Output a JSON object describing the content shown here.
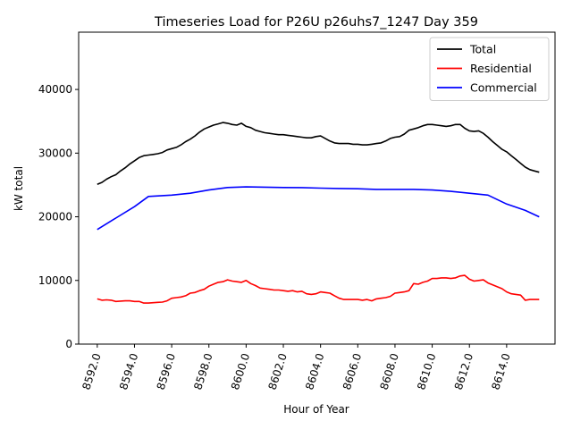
{
  "chart_data": {
    "type": "line",
    "title": "Timeseries Load for P26U p26uhs7_1247  Day 359",
    "xlabel": "Hour of Year",
    "ylabel": "kW total",
    "xlim": [
      8591.0,
      8616.6
    ],
    "ylim": [
      0,
      49000
    ],
    "x_ticks": [
      8592.0,
      8594.0,
      8596.0,
      8598.0,
      8600.0,
      8602.0,
      8604.0,
      8606.0,
      8608.0,
      8610.0,
      8612.0,
      8614.0
    ],
    "x_tick_labels": [
      "8592.0",
      "8594.0",
      "8596.0",
      "8598.0",
      "8600.0",
      "8602.0",
      "8604.0",
      "8606.0",
      "8608.0",
      "8610.0",
      "8612.0",
      "8614.0"
    ],
    "y_ticks": [
      0,
      10000,
      20000,
      30000,
      40000
    ],
    "y_tick_labels": [
      "0",
      "10000",
      "20000",
      "30000",
      "40000"
    ],
    "legend_position": "top-right",
    "series": [
      {
        "name": "Total",
        "color": "#000000",
        "x": [
          8592.0,
          8592.25,
          8592.5,
          8592.75,
          8593.0,
          8593.25,
          8593.5,
          8593.75,
          8594.0,
          8594.25,
          8594.5,
          8594.75,
          8595.0,
          8595.25,
          8595.5,
          8595.75,
          8596.0,
          8596.25,
          8596.5,
          8596.75,
          8597.0,
          8597.25,
          8597.5,
          8597.75,
          8598.0,
          8598.25,
          8598.5,
          8598.75,
          8599.0,
          8599.25,
          8599.5,
          8599.75,
          8600.0,
          8600.25,
          8600.5,
          8600.75,
          8601.0,
          8601.25,
          8601.5,
          8601.75,
          8602.0,
          8602.25,
          8602.5,
          8602.75,
          8603.0,
          8603.25,
          8603.5,
          8603.75,
          8604.0,
          8604.25,
          8604.5,
          8604.75,
          8605.0,
          8605.25,
          8605.5,
          8605.75,
          8606.0,
          8606.25,
          8606.5,
          8606.75,
          8607.0,
          8607.25,
          8607.5,
          8607.75,
          8608.0,
          8608.25,
          8608.5,
          8608.75,
          8609.0,
          8609.25,
          8609.5,
          8609.75,
          8610.0,
          8610.25,
          8610.5,
          8610.75,
          8611.0,
          8611.25,
          8611.5,
          8611.75,
          8612.0,
          8612.25,
          8612.5,
          8612.75,
          8613.0,
          8613.25,
          8613.5,
          8613.75,
          8614.0,
          8614.25,
          8614.5,
          8614.75,
          8615.0,
          8615.25,
          8615.5,
          8615.75
        ],
        "y": [
          25100,
          25400,
          25900,
          26300,
          26600,
          27200,
          27700,
          28300,
          28800,
          29300,
          29600,
          29700,
          29800,
          29900,
          30100,
          30500,
          30700,
          30900,
          31300,
          31800,
          32200,
          32700,
          33300,
          33800,
          34100,
          34400,
          34600,
          34800,
          34700,
          34500,
          34400,
          34700,
          34200,
          34000,
          33600,
          33400,
          33200,
          33100,
          33000,
          32900,
          32900,
          32800,
          32700,
          32600,
          32500,
          32400,
          32400,
          32600,
          32700,
          32300,
          31900,
          31600,
          31500,
          31500,
          31500,
          31400,
          31400,
          31300,
          31300,
          31400,
          31500,
          31600,
          31900,
          32300,
          32500,
          32600,
          33000,
          33600,
          33800,
          34000,
          34300,
          34500,
          34500,
          34400,
          34300,
          34200,
          34300,
          34500,
          34500,
          33900,
          33500,
          33400,
          33500,
          33100,
          32500,
          31800,
          31200,
          30600,
          30200,
          29600,
          29000,
          28400,
          27800,
          27400,
          27200,
          27000
        ]
      },
      {
        "name": "Residential",
        "color": "#ff0000",
        "x": [
          8592.0,
          8592.25,
          8592.5,
          8592.75,
          8593.0,
          8593.25,
          8593.5,
          8593.75,
          8594.0,
          8594.25,
          8594.5,
          8594.75,
          8595.0,
          8595.25,
          8595.5,
          8595.75,
          8596.0,
          8596.25,
          8596.5,
          8596.75,
          8597.0,
          8597.25,
          8597.5,
          8597.75,
          8598.0,
          8598.25,
          8598.5,
          8598.75,
          8599.0,
          8599.25,
          8599.5,
          8599.75,
          8600.0,
          8600.25,
          8600.5,
          8600.75,
          8601.0,
          8601.25,
          8601.5,
          8601.75,
          8602.0,
          8602.25,
          8602.5,
          8602.75,
          8603.0,
          8603.25,
          8603.5,
          8603.75,
          8604.0,
          8604.25,
          8604.5,
          8604.75,
          8605.0,
          8605.25,
          8605.5,
          8605.75,
          8606.0,
          8606.25,
          8606.5,
          8606.75,
          8607.0,
          8607.25,
          8607.5,
          8607.75,
          8608.0,
          8608.25,
          8608.5,
          8608.75,
          8609.0,
          8609.25,
          8609.5,
          8609.75,
          8610.0,
          8610.25,
          8610.5,
          8610.75,
          8611.0,
          8611.25,
          8611.5,
          8611.75,
          8612.0,
          8612.25,
          8612.5,
          8612.75,
          8613.0,
          8613.25,
          8613.5,
          8613.75,
          8614.0,
          8614.25,
          8614.5,
          8614.75,
          8615.0,
          8615.25,
          8615.5,
          8615.75
        ],
        "y": [
          7100,
          6900,
          6950,
          6900,
          6700,
          6750,
          6800,
          6800,
          6700,
          6700,
          6450,
          6450,
          6500,
          6550,
          6600,
          6800,
          7200,
          7300,
          7400,
          7600,
          8000,
          8100,
          8400,
          8600,
          9100,
          9400,
          9700,
          9800,
          10100,
          9900,
          9800,
          9700,
          10000,
          9500,
          9200,
          8800,
          8700,
          8600,
          8500,
          8500,
          8400,
          8300,
          8400,
          8200,
          8300,
          7900,
          7800,
          7900,
          8200,
          8100,
          8000,
          7600,
          7200,
          7000,
          7000,
          7000,
          7000,
          6900,
          7000,
          6800,
          7100,
          7200,
          7300,
          7500,
          8000,
          8100,
          8200,
          8400,
          9500,
          9400,
          9700,
          9900,
          10300,
          10300,
          10400,
          10400,
          10300,
          10400,
          10700,
          10800,
          10200,
          9900,
          10000,
          10100,
          9600,
          9300,
          9000,
          8700,
          8200,
          7900,
          7800,
          7700,
          6900,
          7000,
          7000,
          7000
        ]
      },
      {
        "name": "Commercial",
        "color": "#0000ff",
        "x": [
          8592.0,
          8593.0,
          8594.0,
          8594.75,
          8596.0,
          8597.0,
          8598.0,
          8599.0,
          8600.0,
          8601.0,
          8602.0,
          8603.0,
          8604.0,
          8605.0,
          8606.0,
          8607.0,
          8608.0,
          8609.0,
          8610.0,
          8611.0,
          8612.0,
          8613.0,
          8614.0,
          8615.0,
          8615.75
        ],
        "y": [
          18000,
          19800,
          21600,
          23200,
          23400,
          23700,
          24200,
          24600,
          24700,
          24650,
          24600,
          24580,
          24500,
          24450,
          24400,
          24300,
          24300,
          24300,
          24200,
          24000,
          23700,
          23400,
          22000,
          21000,
          20000
        ]
      }
    ]
  }
}
